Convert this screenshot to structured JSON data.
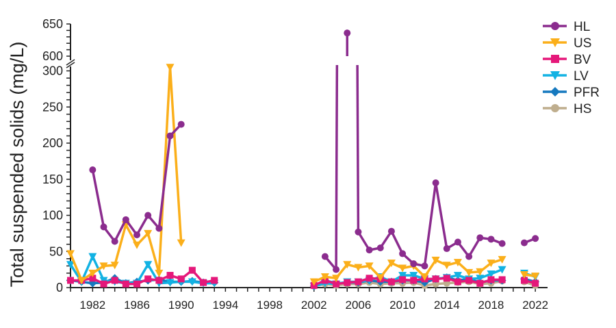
{
  "chart_data": {
    "type": "line",
    "title": "",
    "xlabel": "",
    "ylabel": "Total suspended solids (mg/L)",
    "xlim": [
      1980,
      2022
    ],
    "ylim": [
      0,
      650
    ],
    "y_axis_break": [
      310,
      600
    ],
    "x_ticks": [
      1982,
      1986,
      1990,
      1994,
      1998,
      2002,
      2006,
      2010,
      2014,
      2018,
      2022
    ],
    "y_ticks": [
      0,
      50,
      100,
      150,
      200,
      250,
      300,
      600,
      650
    ],
    "grid": false,
    "legend_position": "top-right",
    "series": [
      {
        "name": "HL",
        "color": "#8B2C8E",
        "marker": "circle",
        "points": [
          [
            1982,
            163
          ],
          [
            1983,
            84
          ],
          [
            1984,
            64
          ],
          [
            1985,
            94
          ],
          [
            1986,
            73
          ],
          [
            1987,
            100
          ],
          [
            1988,
            82
          ],
          [
            1989,
            210
          ],
          [
            1990,
            226
          ],
          null,
          [
            2003,
            43
          ],
          [
            2004,
            25
          ],
          [
            2005,
            636
          ],
          [
            2006,
            77
          ],
          [
            2007,
            52
          ],
          [
            2008,
            55
          ],
          [
            2009,
            78
          ],
          [
            2010,
            47
          ],
          [
            2011,
            33
          ],
          [
            2012,
            30
          ],
          [
            2013,
            145
          ],
          [
            2014,
            54
          ],
          [
            2015,
            63
          ],
          [
            2016,
            43
          ],
          [
            2017,
            69
          ],
          [
            2018,
            67
          ],
          [
            2019,
            61
          ],
          null,
          [
            2021,
            62
          ],
          [
            2022,
            68
          ]
        ]
      },
      {
        "name": "US",
        "color": "#FBAF1A",
        "marker": "triangle-down",
        "points": [
          [
            1980,
            47
          ],
          [
            1981,
            10
          ],
          [
            1982,
            20
          ],
          [
            1983,
            30
          ],
          [
            1984,
            31
          ],
          [
            1985,
            87
          ],
          [
            1986,
            59
          ],
          [
            1987,
            75
          ],
          [
            1988,
            20
          ],
          [
            1989,
            305
          ],
          [
            1990,
            62
          ],
          null,
          [
            2002,
            8
          ],
          [
            2003,
            15
          ],
          [
            2004,
            13
          ],
          [
            2005,
            32
          ],
          [
            2006,
            28
          ],
          [
            2007,
            30
          ],
          [
            2008,
            14
          ],
          [
            2009,
            34
          ],
          [
            2010,
            27
          ],
          [
            2011,
            30
          ],
          [
            2012,
            15
          ],
          [
            2013,
            38
          ],
          [
            2014,
            31
          ],
          [
            2015,
            35
          ],
          [
            2016,
            21
          ],
          [
            2017,
            22
          ],
          [
            2018,
            34
          ],
          [
            2019,
            39
          ],
          null,
          [
            2021,
            18
          ],
          [
            2022,
            16
          ]
        ]
      },
      {
        "name": "BV",
        "color": "#E5187A",
        "marker": "square",
        "points": [
          [
            1980,
            10
          ],
          [
            1981,
            10
          ],
          [
            1982,
            13
          ],
          [
            1983,
            5
          ],
          [
            1984,
            10
          ],
          [
            1985,
            5
          ],
          [
            1986,
            5
          ],
          [
            1987,
            12
          ],
          [
            1988,
            10
          ],
          [
            1989,
            17
          ],
          [
            1990,
            12
          ],
          [
            1991,
            24
          ],
          [
            1992,
            7
          ],
          [
            1993,
            10
          ],
          null,
          [
            2002,
            3
          ],
          [
            2003,
            10
          ],
          [
            2004,
            5
          ],
          [
            2005,
            7
          ],
          [
            2006,
            8
          ],
          [
            2007,
            13
          ],
          [
            2008,
            12
          ],
          [
            2009,
            8
          ],
          [
            2010,
            11
          ],
          [
            2011,
            10
          ],
          [
            2012,
            12
          ],
          [
            2013,
            12
          ],
          [
            2014,
            13
          ],
          [
            2015,
            8
          ],
          [
            2016,
            10
          ],
          [
            2017,
            6
          ],
          [
            2018,
            11
          ],
          [
            2019,
            11
          ],
          null,
          [
            2021,
            10
          ],
          [
            2022,
            6
          ]
        ]
      },
      {
        "name": "LV",
        "color": "#12B2E3",
        "marker": "triangle-down",
        "points": [
          [
            1980,
            32
          ],
          [
            1981,
            8
          ],
          [
            1982,
            43
          ],
          [
            1983,
            10
          ],
          [
            1984,
            8
          ],
          [
            1985,
            6
          ],
          [
            1986,
            6
          ],
          [
            1987,
            32
          ],
          [
            1988,
            6
          ],
          [
            1989,
            7
          ],
          [
            1990,
            8
          ],
          [
            1991,
            8
          ],
          [
            1992,
            6
          ],
          [
            1993,
            6
          ],
          null,
          [
            2002,
            2
          ],
          [
            2003,
            6
          ],
          [
            2004,
            5
          ],
          [
            2005,
            8
          ],
          [
            2006,
            8
          ],
          [
            2007,
            10
          ],
          [
            2008,
            15
          ],
          [
            2009,
            8
          ],
          [
            2010,
            17
          ],
          [
            2011,
            17
          ],
          [
            2012,
            12
          ],
          [
            2013,
            12
          ],
          [
            2014,
            14
          ],
          [
            2015,
            17
          ],
          [
            2016,
            12
          ],
          [
            2017,
            13
          ],
          [
            2018,
            19
          ],
          [
            2019,
            25
          ],
          null,
          [
            2021,
            20
          ],
          [
            2022,
            15
          ]
        ]
      },
      {
        "name": "PFR",
        "color": "#1679BF",
        "marker": "diamond",
        "points": [
          [
            1980,
            10
          ],
          [
            1981,
            8
          ],
          [
            1982,
            6
          ],
          [
            1983,
            7
          ],
          [
            1984,
            13
          ],
          [
            1985,
            6
          ],
          [
            1986,
            8
          ],
          [
            1987,
            10
          ],
          [
            1988,
            11
          ],
          [
            1989,
            8
          ],
          [
            1990,
            8
          ],
          [
            1991,
            9
          ],
          [
            1992,
            7
          ],
          [
            1993,
            7
          ],
          null,
          [
            2002,
            2
          ],
          [
            2003,
            10
          ],
          [
            2004,
            6
          ],
          [
            2005,
            7
          ],
          [
            2006,
            7
          ],
          [
            2007,
            10
          ],
          [
            2008,
            8
          ],
          [
            2009,
            8
          ],
          [
            2010,
            10
          ],
          [
            2011,
            10
          ],
          [
            2012,
            7
          ],
          [
            2013,
            12
          ],
          [
            2014,
            14
          ],
          [
            2015,
            10
          ],
          [
            2016,
            12
          ],
          [
            2017,
            7
          ],
          [
            2018,
            10
          ],
          [
            2019,
            10
          ],
          null,
          [
            2021,
            12
          ],
          [
            2022,
            8
          ]
        ]
      },
      {
        "name": "HS",
        "color": "#BFAE8E",
        "marker": "circle",
        "points": [
          [
            2002,
            2
          ],
          [
            2003,
            5
          ],
          [
            2004,
            3
          ],
          [
            2005,
            5
          ],
          [
            2006,
            5
          ],
          [
            2007,
            7
          ],
          [
            2008,
            5
          ],
          [
            2009,
            6
          ],
          [
            2010,
            6
          ],
          [
            2011,
            7
          ],
          [
            2012,
            3
          ],
          [
            2013,
            5
          ],
          [
            2014,
            6
          ],
          [
            2015,
            7
          ],
          [
            2016,
            8
          ],
          [
            2017,
            5
          ],
          [
            2018,
            6
          ],
          [
            2019,
            9
          ],
          null,
          [
            2021,
            8
          ],
          [
            2022,
            3
          ]
        ]
      }
    ]
  }
}
